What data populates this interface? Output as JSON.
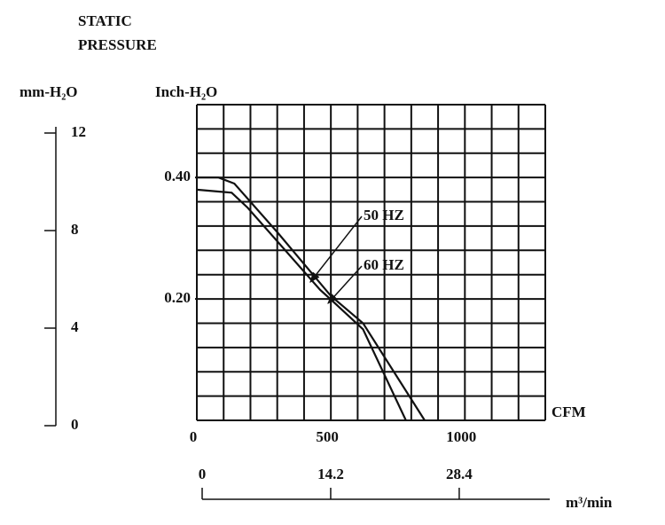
{
  "chart_data": {
    "type": "line",
    "title": [
      "STATIC",
      "PRESSURE"
    ],
    "xlabel": "CFM",
    "ylabel": "Inch-H₂O",
    "xlim": [
      0,
      1300
    ],
    "xticks": [
      0,
      500,
      1000
    ],
    "ylim": [
      0,
      0.52
    ],
    "yticks": [
      {
        "value": 0.4,
        "label": "0.40"
      },
      {
        "value": 0.2,
        "label": "0.20"
      }
    ],
    "grid": true,
    "xgrid_step": 100,
    "ygrid_step": 0.04,
    "y2label": "mm-H₂O",
    "y2lim": [
      0,
      12
    ],
    "y2ticks": [
      0,
      4,
      8,
      12
    ],
    "x2label": "m³/min",
    "x2lim": [
      0,
      38.4
    ],
    "x2ticks": [
      0,
      14.2,
      28.4
    ],
    "color": "#111111",
    "series": [
      {
        "name": "60 HZ",
        "x": [
          0,
          80,
          140,
          300,
          500,
          620,
          850
        ],
        "values": [
          0.4,
          0.4,
          0.39,
          0.31,
          0.205,
          0.16,
          0
        ]
      },
      {
        "name": "50 HZ",
        "x": [
          0,
          130,
          190,
          460,
          510,
          620,
          780
        ],
        "values": [
          0.38,
          0.375,
          0.35,
          0.215,
          0.195,
          0.15,
          0
        ]
      }
    ]
  }
}
